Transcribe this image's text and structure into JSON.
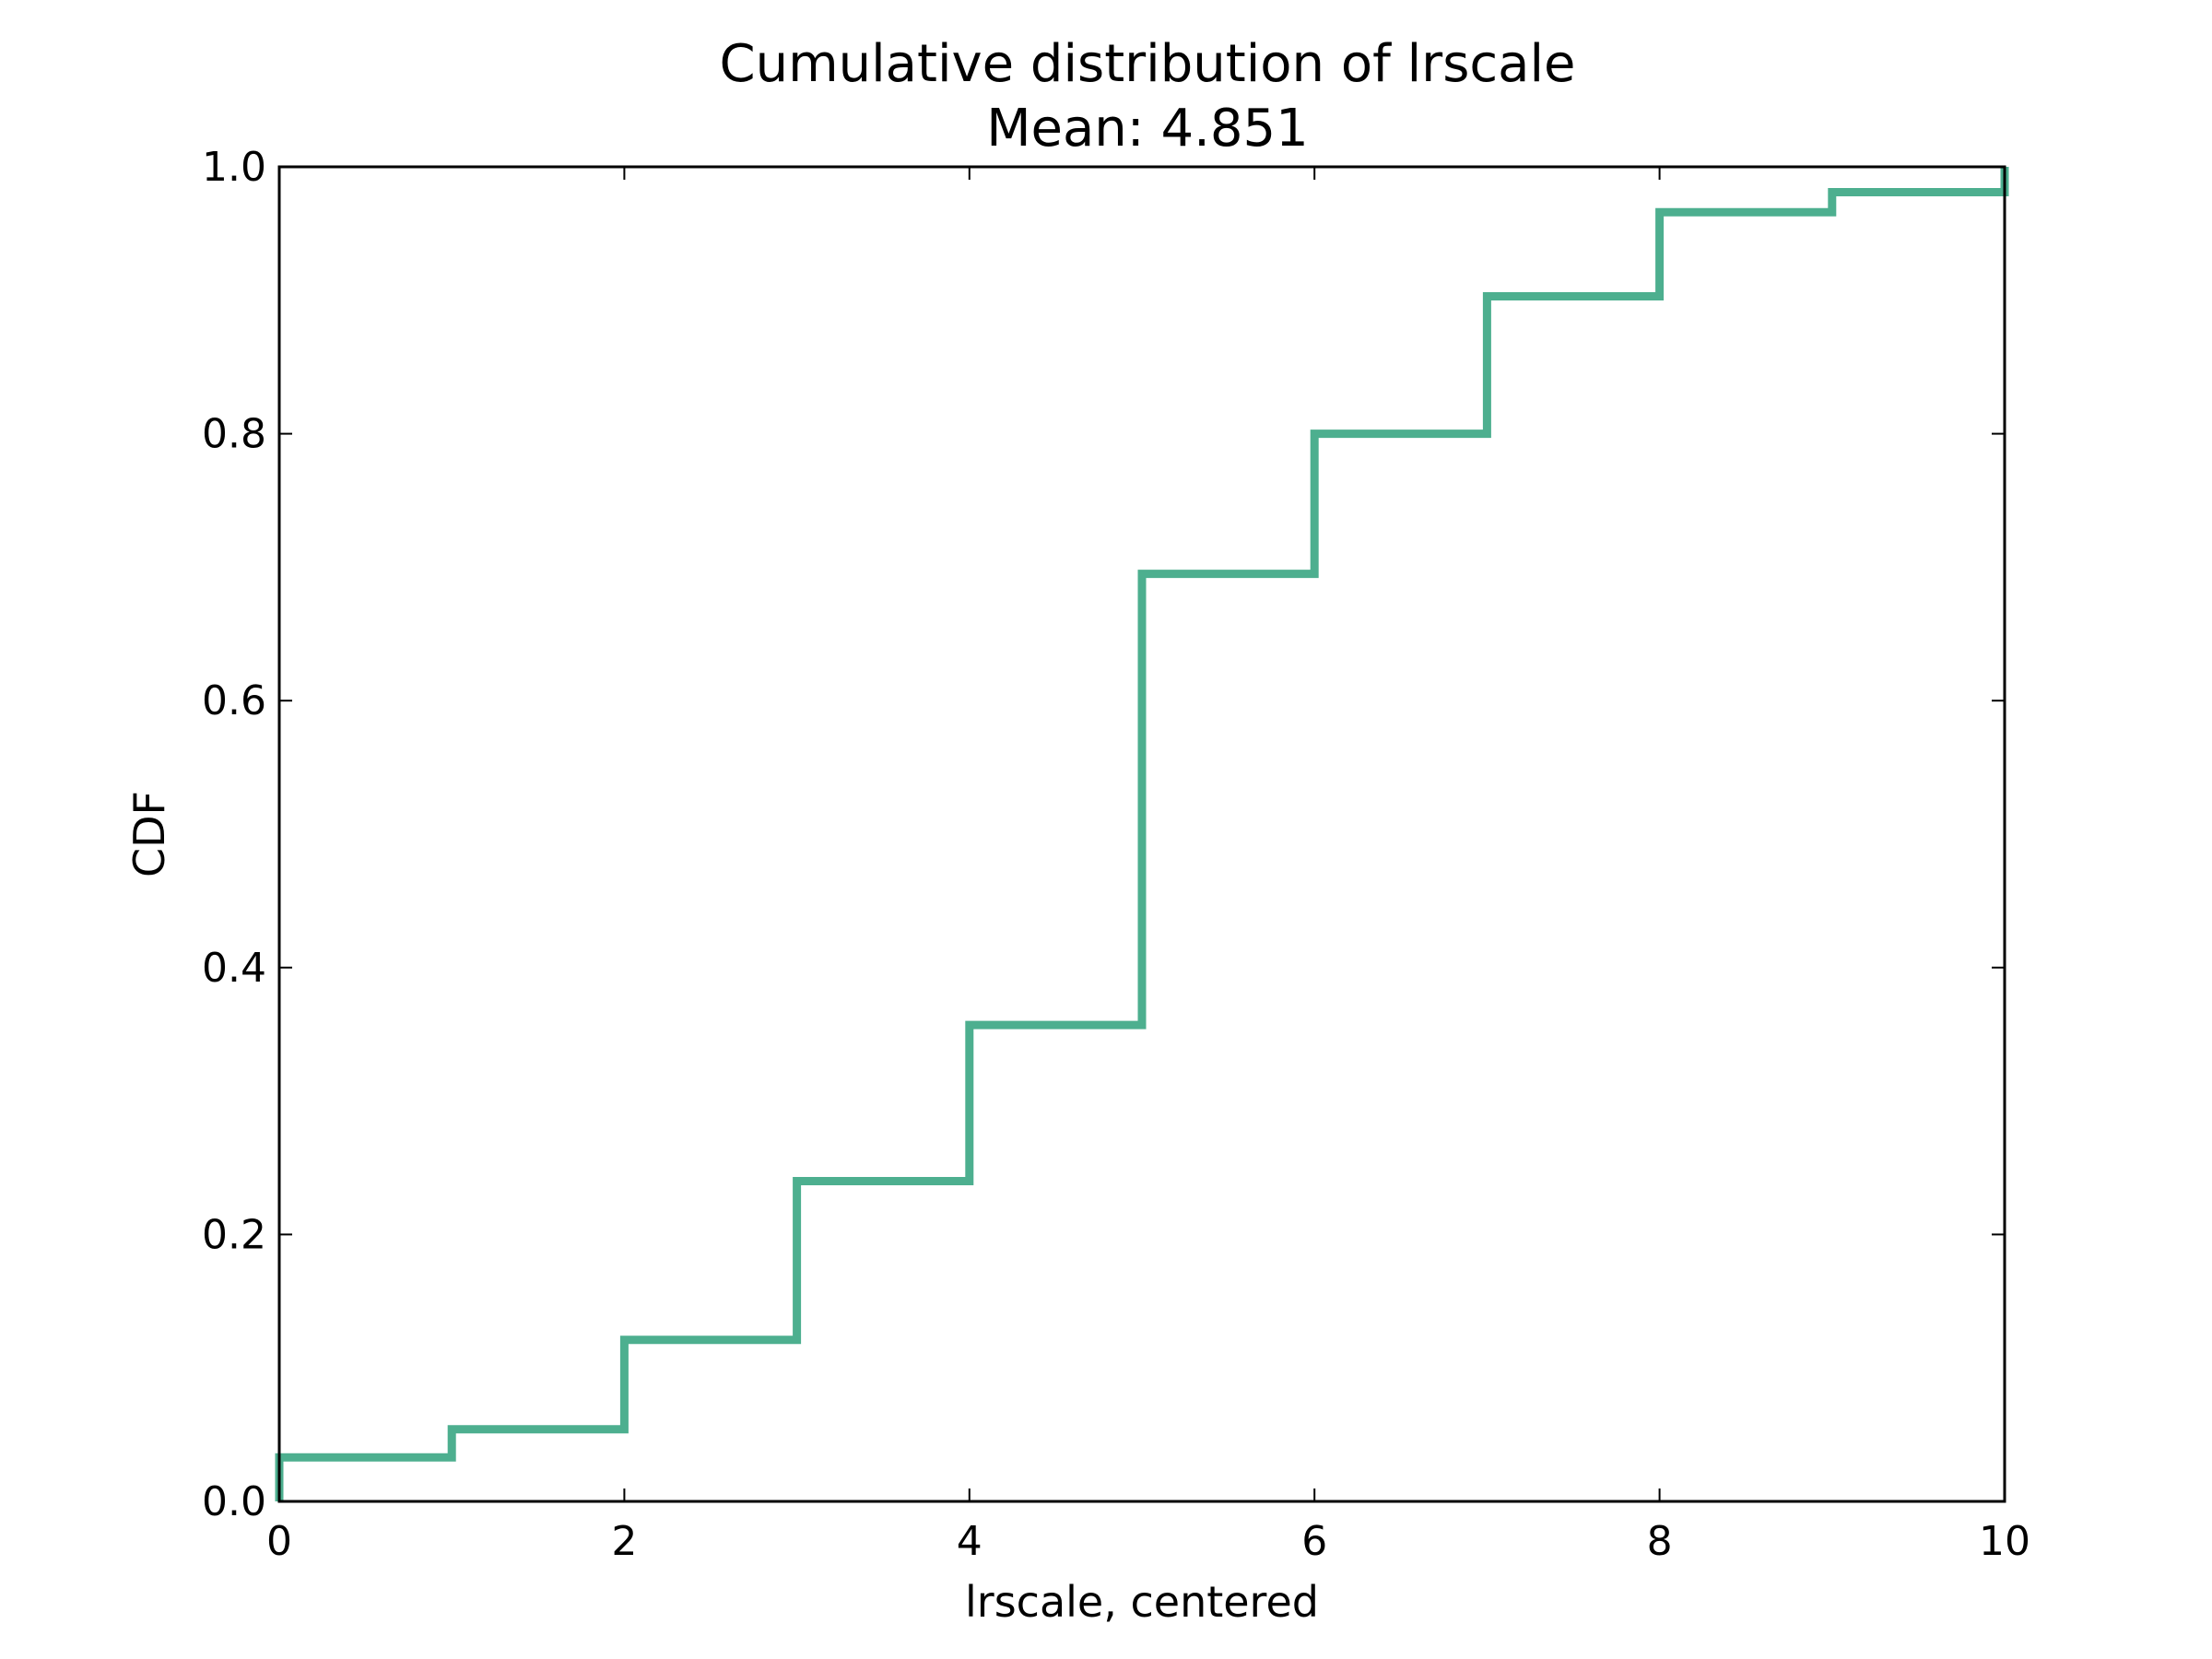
{
  "chart_data": {
    "type": "line",
    "drawstyle": "steps-post",
    "title": "Cumulative distribution of lrscale",
    "subtitle": "Mean: 4.851",
    "xlabel": "lrscale, centered",
    "ylabel": "CDF",
    "xlim": [
      0,
      10
    ],
    "ylim": [
      0,
      1
    ],
    "xticks": [
      0,
      2,
      4,
      6,
      8,
      10
    ],
    "yticks": [
      0.0,
      0.2,
      0.4,
      0.6,
      0.8,
      1.0
    ],
    "xtick_labels": [
      "0",
      "2",
      "4",
      "6",
      "8",
      "10"
    ],
    "ytick_labels": [
      "0.0",
      "0.2",
      "0.4",
      "0.6",
      "0.8",
      "1.0"
    ],
    "grid": false,
    "series": [
      {
        "color": "#4daf8f",
        "x": [
          0,
          1,
          2,
          3,
          4,
          5,
          6,
          7,
          8,
          9,
          10
        ],
        "y": [
          0.033,
          0.054,
          0.121,
          0.24,
          0.357,
          0.695,
          0.8,
          0.903,
          0.966,
          0.981,
          1.0
        ]
      }
    ]
  }
}
